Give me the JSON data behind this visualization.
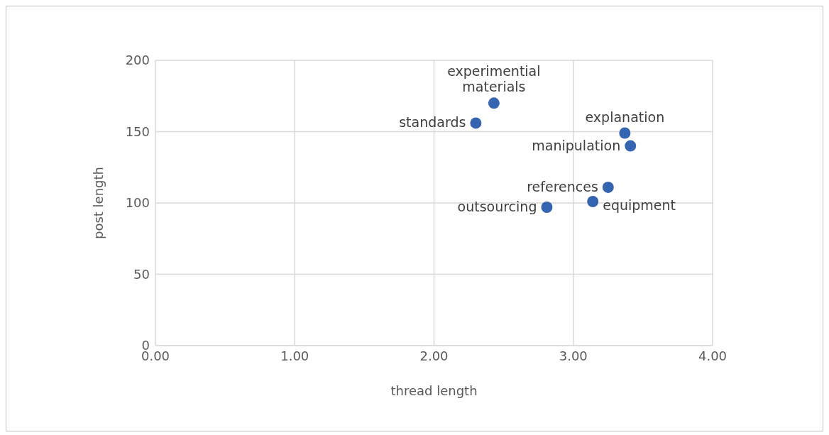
{
  "chart_data": {
    "type": "scatter",
    "xlabel": "thread length",
    "ylabel": "post length",
    "series": [
      {
        "color": "#3565b0",
        "x": [
          2.43,
          2.3,
          3.37,
          3.41,
          3.25,
          3.14,
          2.81
        ],
        "values": [
          170,
          156,
          149,
          140,
          111,
          101,
          97
        ]
      }
    ],
    "annotations": [
      {
        "text": "experimential materials",
        "x": 2.43,
        "y": 170
      },
      {
        "text": "standards",
        "x": 2.3,
        "y": 156
      },
      {
        "text": "explanation",
        "x": 3.37,
        "y": 149
      },
      {
        "text": "manipulation",
        "x": 3.41,
        "y": 140
      },
      {
        "text": "references",
        "x": 3.25,
        "y": 111
      },
      {
        "text": "equipment",
        "x": 3.14,
        "y": 101
      },
      {
        "text": "outsourcing",
        "x": 2.81,
        "y": 97
      }
    ],
    "xlim": [
      0,
      4
    ],
    "xticks": [
      {
        "value": 0,
        "label": "0.00"
      },
      {
        "value": 1,
        "label": "1.00"
      },
      {
        "value": 2,
        "label": "2.00"
      },
      {
        "value": 3,
        "label": "3.00"
      },
      {
        "value": 4,
        "label": "4.00"
      }
    ],
    "ylim": [
      0,
      200
    ],
    "yticks": [
      0,
      50,
      100,
      150,
      200
    ],
    "grid": true,
    "marker": "circle",
    "legend": false
  }
}
